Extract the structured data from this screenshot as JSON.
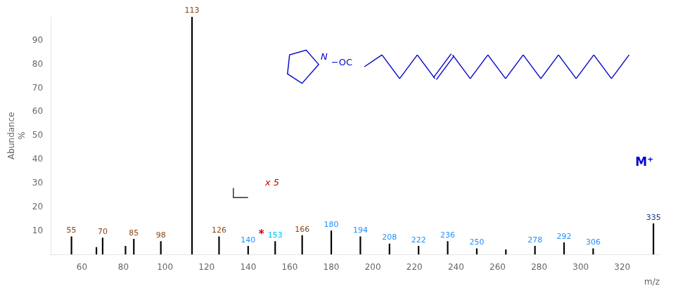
{
  "chart_data": {
    "type": "bar",
    "xlabel": "m/z",
    "ylabel": "Abundance\n%",
    "x": [
      55,
      67,
      70,
      81,
      85,
      98,
      113,
      126,
      140,
      153,
      166,
      180,
      194,
      208,
      222,
      236,
      250,
      264,
      278,
      292,
      306,
      335
    ],
    "values": [
      7.5,
      3.0,
      7.0,
      3.5,
      6.5,
      5.5,
      100.0,
      7.5,
      3.5,
      5.5,
      8.0,
      10.0,
      7.5,
      4.5,
      3.5,
      5.5,
      2.5,
      2.0,
      3.5,
      5.0,
      2.5,
      13.0
    ],
    "color": "#000000",
    "xlim": [
      45,
      338
    ],
    "ylim": [
      0,
      100
    ],
    "xticks": [
      60,
      80,
      100,
      120,
      140,
      160,
      180,
      200,
      220,
      240,
      260,
      280,
      300,
      320
    ],
    "yticks": [
      10,
      20,
      30,
      40,
      50,
      60,
      70,
      80,
      90
    ],
    "grid": false,
    "annotations": [
      {
        "text": "55",
        "x": 55,
        "color": "#8B4513"
      },
      {
        "text": "70",
        "x": 70,
        "color": "#8B4513"
      },
      {
        "text": "85",
        "x": 85,
        "color": "#8B4513"
      },
      {
        "text": "98",
        "x": 98,
        "color": "#8B4513"
      },
      {
        "text": "113",
        "x": 113,
        "color": "#8B4513"
      },
      {
        "text": "126",
        "x": 126,
        "color": "#8B4513"
      },
      {
        "text": "140",
        "x": 140,
        "color": "#1E90FF"
      },
      {
        "text": "153",
        "x": 153,
        "color": "#00BFFF"
      },
      {
        "text": "166",
        "x": 166,
        "color": "#8B4513"
      },
      {
        "text": "180",
        "x": 180,
        "color": "#1E90FF"
      },
      {
        "text": "194",
        "x": 194,
        "color": "#1E90FF"
      },
      {
        "text": "208",
        "x": 208,
        "color": "#1E90FF"
      },
      {
        "text": "222",
        "x": 222,
        "color": "#1E90FF"
      },
      {
        "text": "236",
        "x": 236,
        "color": "#1E90FF"
      },
      {
        "text": "250",
        "x": 250,
        "color": "#1E90FF"
      },
      {
        "text": "278",
        "x": 278,
        "color": "#1E90FF"
      },
      {
        "text": "292",
        "x": 292,
        "color": "#1E90FF"
      },
      {
        "text": "306",
        "x": 306,
        "color": "#1E90FF"
      },
      {
        "text": "335",
        "x": 335,
        "color": "#1E3A8A"
      },
      {
        "text": "*",
        "color": "#cc0000"
      },
      {
        "text": "x 5",
        "color": "#cc0000"
      },
      {
        "text": "M⁺",
        "color": "#0000CD"
      },
      {
        "text": "N",
        "color": "#0000CD"
      },
      {
        "text": "−OC",
        "color": "#0000CD"
      }
    ]
  }
}
